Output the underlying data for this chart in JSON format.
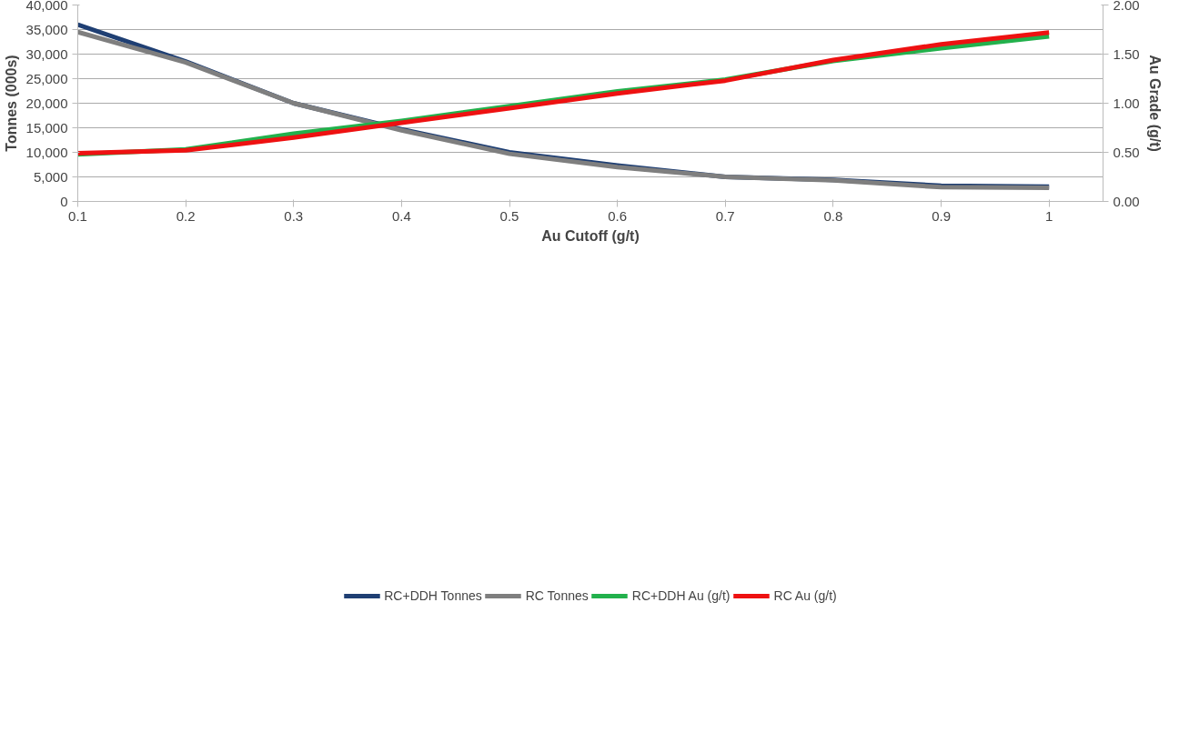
{
  "chart_data": {
    "type": "line",
    "xlabel": "Au Cutoff (g/t)",
    "ylabel": "Tonnes (000s)",
    "y2label": "Au Grade (g/t)",
    "x": [
      0.1,
      0.2,
      0.3,
      0.4,
      0.5,
      0.6,
      0.7,
      0.8,
      0.9,
      1
    ],
    "series": [
      {
        "name": "RC+DDH Tonnes",
        "color": "#1f3f73",
        "values": [
          36000,
          28500,
          20000,
          14700,
          10000,
          7300,
          5000,
          4400,
          3200,
          3000
        ]
      },
      {
        "name": "RC Tonnes",
        "color": "#7f7f7f",
        "values": [
          34500,
          28300,
          20000,
          14500,
          9700,
          7000,
          5000,
          4300,
          2900,
          2800
        ]
      },
      {
        "name": "RC+DDH Au (g/t)",
        "color": "#22b14c",
        "axis": "y2",
        "values": [
          0.48,
          0.53,
          0.69,
          0.82,
          0.97,
          1.12,
          1.24,
          1.43,
          1.56,
          1.68
        ]
      },
      {
        "name": "RC Au (g/t)",
        "color": "#ee1111",
        "axis": "y2",
        "values": [
          0.49,
          0.52,
          0.65,
          0.8,
          0.95,
          1.1,
          1.23,
          1.44,
          1.6,
          1.72
        ]
      }
    ],
    "xlim": [
      0.1,
      1.05
    ],
    "xticks": [
      0.1,
      0.2,
      0.3,
      0.4,
      0.5,
      0.6,
      0.7,
      0.8,
      0.9,
      1
    ],
    "ylim": [
      0,
      40000
    ],
    "yticks": [
      0,
      {
        "value": 5000,
        "label": "5,000"
      },
      {
        "value": 10000,
        "label": "10,000"
      },
      {
        "value": 15000,
        "label": "15,000"
      },
      {
        "value": 20000,
        "label": "20,000"
      },
      {
        "value": 25000,
        "label": "25,000"
      },
      {
        "value": 30000,
        "label": "30,000"
      },
      {
        "value": 35000,
        "label": "35,000"
      },
      {
        "value": 40000,
        "label": "40,000"
      }
    ],
    "y2lim": [
      0,
      2
    ],
    "y2ticks": [
      {
        "value": 0,
        "label": "0.00"
      },
      {
        "value": 0.5,
        "label": "0.50"
      },
      {
        "value": 1,
        "label": "1.00"
      },
      {
        "value": 1.5,
        "label": "1.50"
      },
      {
        "value": 2,
        "label": "2.00"
      }
    ],
    "grid": "y",
    "legend": "bottom",
    "marker": "none",
    "line_style": "solid"
  }
}
